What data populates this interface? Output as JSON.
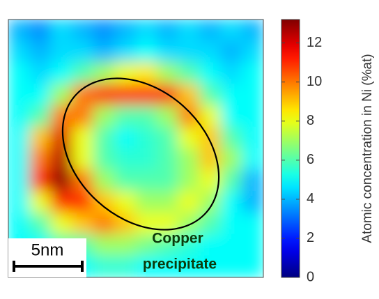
{
  "chart_data": {
    "type": "heatmap",
    "colormap": "jet",
    "z": [
      [
        4,
        3.5,
        4.5,
        4,
        3.5,
        4,
        4.5,
        4,
        4.5,
        4,
        4.5,
        4
      ],
      [
        4.5,
        4,
        4.5,
        4.5,
        4,
        4.5,
        5,
        4.5,
        4.5,
        4.5,
        4,
        4.5
      ],
      [
        5,
        4.5,
        5,
        6,
        7,
        8,
        8.5,
        7,
        6,
        5,
        4.5,
        5
      ],
      [
        5,
        5,
        7,
        10,
        11,
        11,
        11,
        11,
        9,
        6,
        5,
        5
      ],
      [
        5,
        6,
        10,
        10,
        7,
        6,
        6,
        7,
        10,
        8,
        5,
        5
      ],
      [
        5,
        9,
        12,
        8,
        6,
        5,
        5.5,
        6,
        8,
        9,
        6,
        5
      ],
      [
        5,
        10,
        12.5,
        8,
        6,
        5.5,
        5.5,
        6,
        7,
        9,
        7,
        5
      ],
      [
        5,
        11,
        13,
        10,
        7,
        6,
        6,
        6,
        7,
        8,
        6,
        4
      ],
      [
        5,
        8,
        11,
        11,
        9,
        8,
        7,
        7,
        8,
        7,
        5,
        4
      ],
      [
        5,
        6,
        8,
        9,
        10,
        9,
        8,
        8,
        7,
        6,
        5,
        5
      ],
      [
        5,
        5,
        6,
        6,
        7,
        7,
        6.5,
        6,
        5.5,
        5,
        5,
        5
      ],
      [
        5,
        5,
        5,
        5,
        5.5,
        5.5,
        5,
        5,
        5,
        5,
        5,
        5
      ]
    ],
    "zlim": [
      0,
      13.2
    ],
    "zticks": [
      0,
      2,
      4,
      6,
      8,
      10,
      12
    ],
    "colorbar_label": "Atomic concentration in Ni (%at)",
    "annotation_lines": [
      "Copper",
      "precipitate"
    ],
    "scale_bar_label": "5nm"
  }
}
